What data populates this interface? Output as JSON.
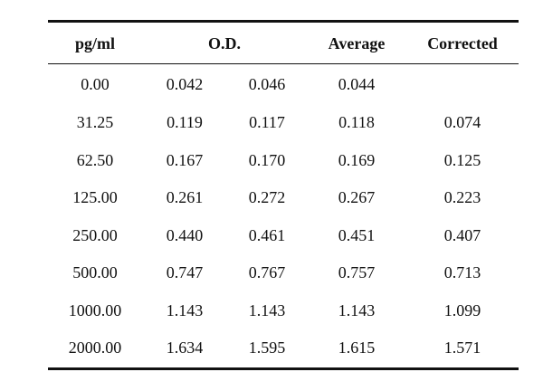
{
  "headers": {
    "concentration": "pg/ml",
    "od": "O.D.",
    "average": "Average",
    "corrected": "Corrected"
  },
  "rows": [
    {
      "conc": "0.00",
      "od1": "0.042",
      "od2": "0.046",
      "avg": "0.044",
      "corr": ""
    },
    {
      "conc": "31.25",
      "od1": "0.119",
      "od2": "0.117",
      "avg": "0.118",
      "corr": "0.074"
    },
    {
      "conc": "62.50",
      "od1": "0.167",
      "od2": "0.170",
      "avg": "0.169",
      "corr": "0.125"
    },
    {
      "conc": "125.00",
      "od1": "0.261",
      "od2": "0.272",
      "avg": "0.267",
      "corr": "0.223"
    },
    {
      "conc": "250.00",
      "od1": "0.440",
      "od2": "0.461",
      "avg": "0.451",
      "corr": "0.407"
    },
    {
      "conc": "500.00",
      "od1": "0.747",
      "od2": "0.767",
      "avg": "0.757",
      "corr": "0.713"
    },
    {
      "conc": "1000.00",
      "od1": "1.143",
      "od2": "1.143",
      "avg": "1.143",
      "corr": "1.099"
    },
    {
      "conc": "2000.00",
      "od1": "1.634",
      "od2": "1.595",
      "avg": "1.615",
      "corr": "1.571"
    }
  ]
}
